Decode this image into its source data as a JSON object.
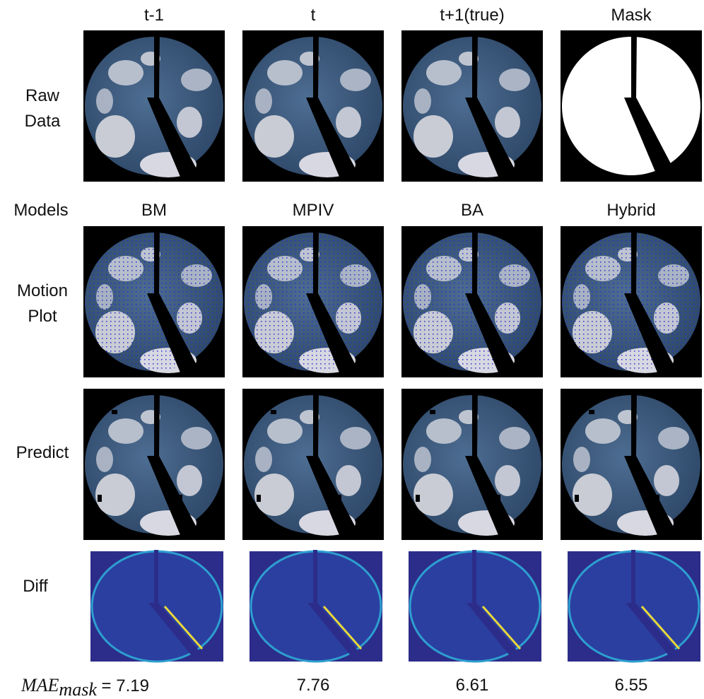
{
  "header": {
    "frames": [
      "t-1",
      "t",
      "t+1(true)",
      "Mask"
    ]
  },
  "models_label": "Models",
  "models": [
    "BM",
    "MPIV",
    "BA",
    "Hybrid"
  ],
  "row_labels": {
    "raw": "Raw Data",
    "motion": "Motion Plot",
    "predict": "Predict",
    "diff": "Diff"
  },
  "mae": {
    "name": "MAE",
    "subscript": "mask",
    "equals": "=",
    "values": [
      7.19,
      7.76,
      6.61,
      6.55
    ]
  }
}
